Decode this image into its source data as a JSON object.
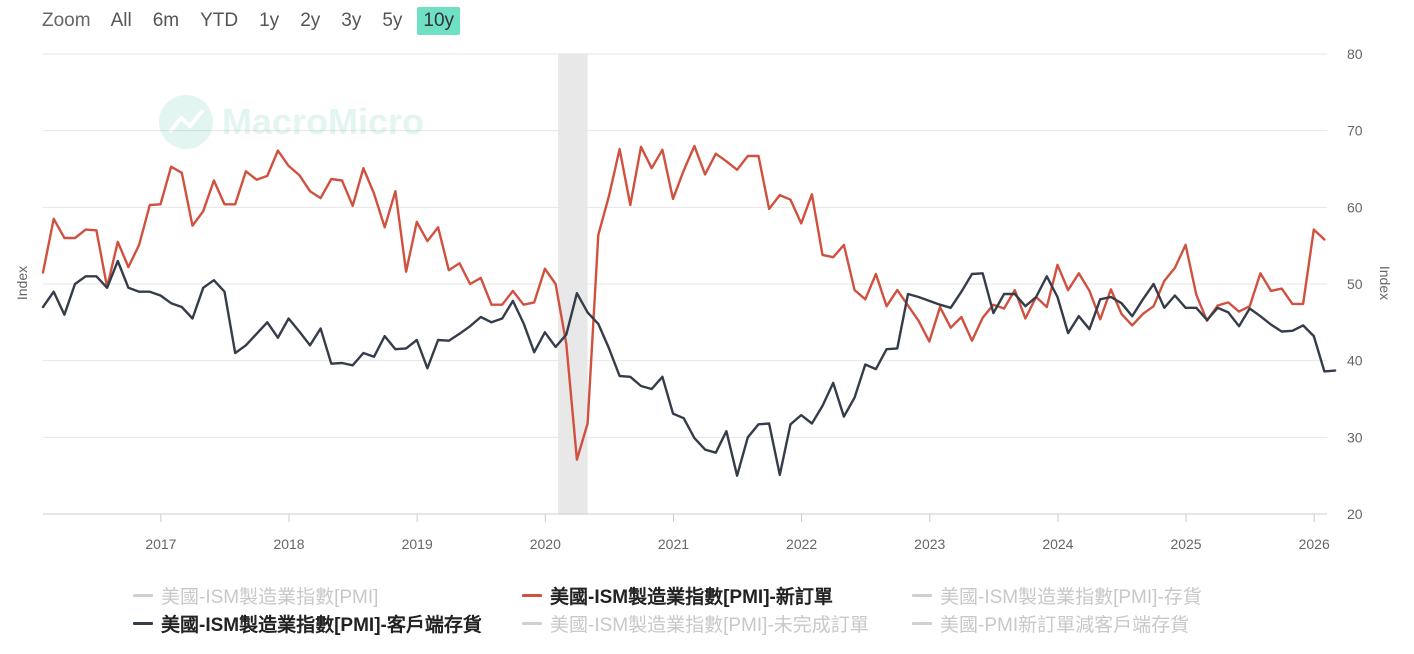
{
  "zoom": {
    "label": "Zoom",
    "buttons": [
      "All",
      "6m",
      "YTD",
      "1y",
      "2y",
      "3y",
      "5y",
      "10y"
    ],
    "active": "10y"
  },
  "watermark": "MacroMicro",
  "colors": {
    "new_orders": "#d0513f",
    "customer_inventories": "#353c4a",
    "grid": "#e6e6e6",
    "axis_text": "#666666",
    "recession_band": "#e8e8e8",
    "zoom_active": "#6fe0c4"
  },
  "chart_data": {
    "type": "line",
    "ylabel_left": "Index",
    "ylabel_right": "Index",
    "ylim": [
      20,
      80
    ],
    "yticks": [
      20,
      30,
      40,
      50,
      60,
      70,
      80
    ],
    "xlim": [
      2016.08,
      2026.1
    ],
    "xticks": [
      "2017",
      "2018",
      "2019",
      "2020",
      "2021",
      "2022",
      "2023",
      "2024",
      "2025",
      "2026"
    ],
    "shaded_range": [
      2020.1,
      2020.33
    ],
    "series": [
      {
        "name": "美國-ISM製造業指數[PMI]-新訂單",
        "color": "#d0513f",
        "start": 2016.08,
        "step_months": 1,
        "values": [
          51.5,
          58.5,
          56,
          56,
          57.1,
          57,
          49.6,
          55.5,
          52.2,
          55.1,
          60.3,
          60.4,
          65.3,
          64.5,
          57.6,
          59.5,
          63.5,
          60.4,
          60.4,
          64.7,
          63.6,
          64.1,
          67.4,
          65.4,
          64.2,
          62.1,
          61.2,
          63.7,
          63.5,
          60.2,
          65.1,
          61.8,
          57.4,
          62.1,
          51.6,
          58.1,
          55.6,
          57.4,
          51.8,
          52.7,
          50.0,
          50.8,
          47.3,
          47.3,
          49.1,
          47.3,
          47.6,
          52.0,
          50.0,
          42.2,
          27.1,
          31.8,
          56.4,
          61.5,
          67.6,
          60.3,
          67.9,
          65.1,
          67.5,
          61.1,
          64.8,
          68.0,
          64.3,
          67.0,
          66.0,
          64.9,
          66.7,
          66.7,
          59.8,
          61.6,
          61.0,
          57.9,
          61.7,
          53.8,
          53.5,
          55.1,
          49.2,
          48.0,
          51.3,
          47.1,
          49.2,
          47.2,
          45.2,
          42.5,
          47.0,
          44.3,
          45.7,
          42.6,
          45.6,
          47.3,
          46.8,
          49.2,
          45.5,
          48.3,
          47.0,
          52.5,
          49.2,
          51.4,
          49.1,
          45.4,
          49.3,
          46.1,
          44.6,
          46.1,
          47.1,
          50.4,
          52.1,
          55.1,
          48.6,
          45.2,
          47.2,
          47.6,
          46.4,
          47.1,
          51.4,
          49.1,
          49.4,
          47.4,
          47.4,
          57.1,
          55.8
        ]
      },
      {
        "name": "美國-ISM製造業指數[PMI]-客戶端存貨",
        "color": "#353c4a",
        "start": 2016.08,
        "step_months": 1,
        "values": [
          47.0,
          49.0,
          46.0,
          50.0,
          51.0,
          51.0,
          49.5,
          53.0,
          49.5,
          49.0,
          49.0,
          48.5,
          47.5,
          47.0,
          45.5,
          49.5,
          50.5,
          49.0,
          41.0,
          42.0,
          43.5,
          45.0,
          43.0,
          45.5,
          43.8,
          42.0,
          44.2,
          39.6,
          39.7,
          39.4,
          41.0,
          40.5,
          43.2,
          41.5,
          41.6,
          42.7,
          39.0,
          42.7,
          42.6,
          43.5,
          44.5,
          45.7,
          45.0,
          45.5,
          47.8,
          44.9,
          41.1,
          43.7,
          41.8,
          43.4,
          48.8,
          46.3,
          44.8,
          41.6,
          38.0,
          37.9,
          36.7,
          36.3,
          37.9,
          33.1,
          32.5,
          29.9,
          28.4,
          28.0,
          30.8,
          25.0,
          30.0,
          31.7,
          31.8,
          25.1,
          31.7,
          32.9,
          31.8,
          34.1,
          37.1,
          32.7,
          35.2,
          39.5,
          38.9,
          41.5,
          41.6,
          48.7,
          48.3,
          47.8,
          47.3,
          46.9,
          49.0,
          51.3,
          51.4,
          46.2,
          48.7,
          48.7,
          47.1,
          48.3,
          51.0,
          48.3,
          43.6,
          45.8,
          44.1,
          48.0,
          48.3,
          47.5,
          45.8,
          48.0,
          50.0,
          46.9,
          48.5,
          46.9,
          46.9,
          45.3,
          46.9,
          46.3,
          44.5,
          46.8,
          45.8,
          44.7,
          43.8,
          43.9,
          44.6,
          43.2,
          38.6,
          38.7
        ]
      }
    ]
  },
  "legend": [
    {
      "label": "美國-ISM製造業指數[PMI]",
      "active": false
    },
    {
      "label": "美國-ISM製造業指數[PMI]-新訂單",
      "active": true,
      "color": "#d0513f"
    },
    {
      "label": "美國-ISM製造業指數[PMI]-存貨",
      "active": false
    },
    {
      "label": "美國-ISM製造業指數[PMI]-客戶端存貨",
      "active": true,
      "color": "#353c4a"
    },
    {
      "label": "美國-ISM製造業指數[PMI]-未完成訂單",
      "active": false
    },
    {
      "label": "美國-PMI新訂單減客戶端存貨",
      "active": false
    }
  ]
}
